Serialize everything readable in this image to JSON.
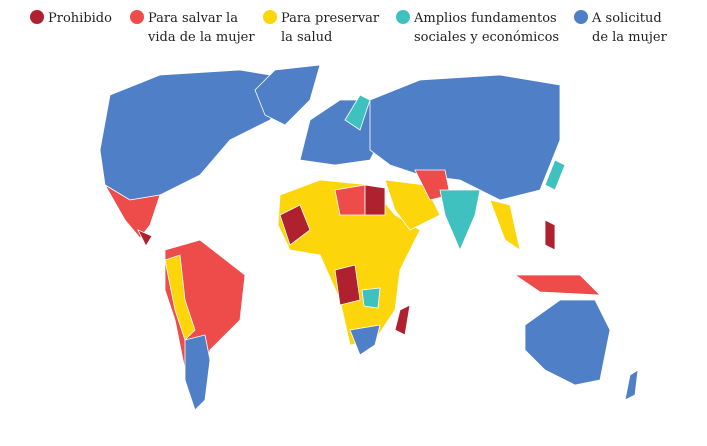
{
  "legend": [
    {
      "lines": [
        "Prohibido"
      ],
      "color": "#b0212f"
    },
    {
      "lines": [
        "Para salvar la",
        "vida de la mujer"
      ],
      "color": "#ee4b4b"
    },
    {
      "lines": [
        "Para preservar",
        "la salud"
      ],
      "color": "#fcd50a"
    },
    {
      "lines": [
        "Amplios fundamentos",
        "sociales y económicos"
      ],
      "color": "#3fc1c0"
    },
    {
      "lines": [
        "A solicitud",
        "de la mujer"
      ],
      "color": "#4f7fc6"
    }
  ]
}
